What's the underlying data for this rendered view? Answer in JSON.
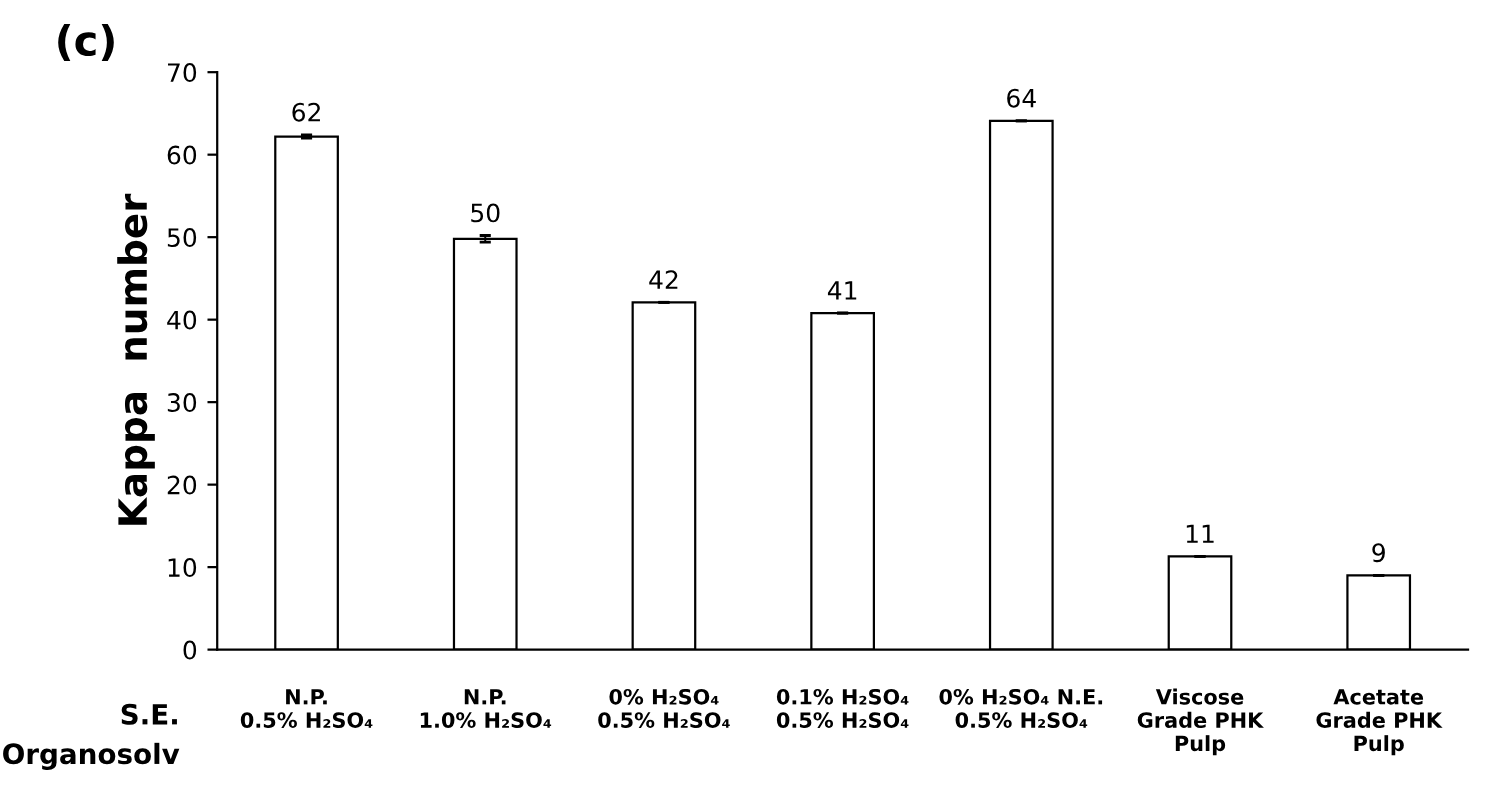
{
  "chart_data": {
    "type": "bar",
    "title": "(c)",
    "ylabel": "Kappa  number",
    "categories": [
      "N.P.\n0.5% H₂SO₄",
      "N.P.\n1.0% H₂SO₄",
      "0% H₂SO₄\n0.5% H₂SO₄",
      "0.1% H₂SO₄\n0.5% H₂SO₄",
      "0% H₂SO₄ N.E.\n0.5% H₂SO₄",
      "Viscose\nGrade PHK\nPulp",
      "Acetate\nGrade PHK\nPulp"
    ],
    "values": [
      62.2,
      49.8,
      42.1,
      40.8,
      64.1,
      11.3,
      9.0
    ],
    "errors": [
      0.2,
      0.4,
      null,
      null,
      null,
      null,
      null
    ],
    "value_labels": [
      "62",
      "50",
      "42",
      "41",
      "64",
      "11",
      "9"
    ],
    "color": "#ffffff",
    "ylim": [
      0,
      70
    ],
    "yticks": [
      0,
      10,
      20,
      30,
      40,
      50,
      60,
      70
    ],
    "annotations": [
      "S.E.\nOrganosolv"
    ],
    "grid": false,
    "legend": false
  }
}
